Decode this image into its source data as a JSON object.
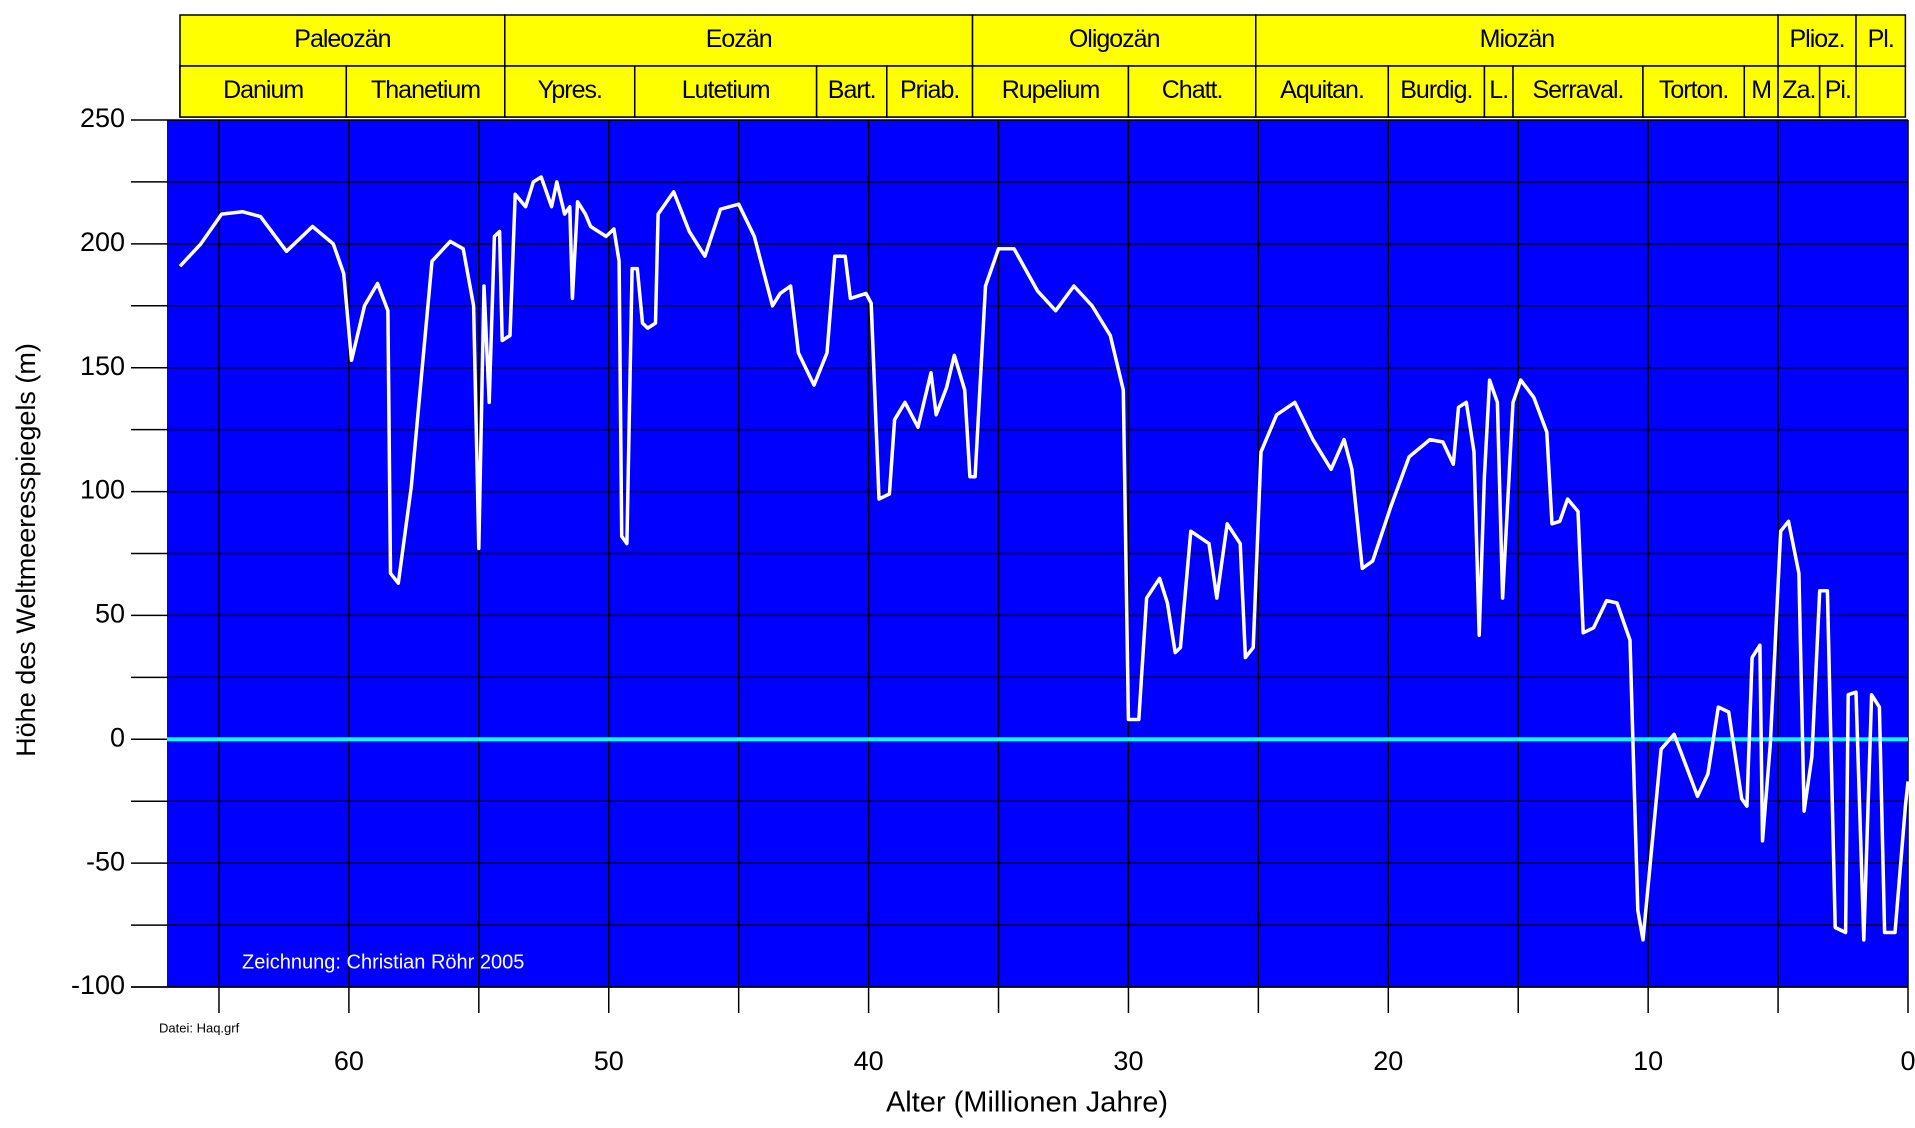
{
  "chart_data": {
    "type": "line",
    "y_label": "Höhe des Weltmeeresspiegels (m)",
    "x_label": "Alter (Millionen Jahre)",
    "annotation": "Zeichnung: Christian Röhr 2005",
    "file_note": "Datei: Haq.grf",
    "xlim": [
      67,
      0
    ],
    "xticks": [
      60,
      50,
      40,
      30,
      20,
      10,
      0
    ],
    "xminor": [
      65,
      55,
      45,
      35,
      25,
      15,
      5
    ],
    "ylim": [
      -100,
      250
    ],
    "yticks": [
      250,
      200,
      150,
      100,
      50,
      0,
      -50,
      -100
    ],
    "yminor": [
      225,
      175,
      125,
      75,
      25,
      -25,
      -75
    ],
    "grid": true,
    "background": "#0000ff",
    "reference_line": {
      "value": 0,
      "color": "#00ffff"
    },
    "epochs": [
      {
        "name": "Paleozän",
        "start": 66.5,
        "end": 54
      },
      {
        "name": "Eozän",
        "start": 54,
        "end": 36
      },
      {
        "name": "Oligozän",
        "start": 36,
        "end": 25.1
      },
      {
        "name": "Miozän",
        "start": 25.1,
        "end": 5
      },
      {
        "name": "Plioz.",
        "start": 5,
        "end": 2
      },
      {
        "name": "Pl.",
        "start": 2,
        "end": 0.1
      }
    ],
    "stages": [
      {
        "name": "Danium",
        "start": 66.5,
        "end": 60.1
      },
      {
        "name": "Thanetium",
        "start": 60.1,
        "end": 54
      },
      {
        "name": "Ypres.",
        "start": 54,
        "end": 49
      },
      {
        "name": "Lutetium",
        "start": 49,
        "end": 42
      },
      {
        "name": "Bart.",
        "start": 42,
        "end": 39.3
      },
      {
        "name": "Priab.",
        "start": 39.3,
        "end": 36
      },
      {
        "name": "Rupelium",
        "start": 36,
        "end": 30
      },
      {
        "name": "Chatt.",
        "start": 30,
        "end": 25.1
      },
      {
        "name": "Aquitan.",
        "start": 25.1,
        "end": 20
      },
      {
        "name": "Burdig.",
        "start": 20,
        "end": 16.3
      },
      {
        "name": "L.",
        "start": 16.3,
        "end": 15.2
      },
      {
        "name": "Serraval.",
        "start": 15.2,
        "end": 10.2
      },
      {
        "name": "Torton.",
        "start": 10.2,
        "end": 6.3
      },
      {
        "name": "M",
        "start": 6.3,
        "end": 5
      },
      {
        "name": "Za.",
        "start": 5,
        "end": 3.4
      },
      {
        "name": "Pi.",
        "start": 3.4,
        "end": 2
      }
    ],
    "series": [
      {
        "color": "#ffffff",
        "x": [
          66.5,
          65.7,
          64.9,
          64.1,
          63.4,
          62.4,
          61.4,
          60.6,
          60.2,
          59.9,
          59.4,
          58.9,
          58.5,
          58.4,
          58.1,
          57.6,
          56.8,
          56.1,
          55.6,
          55.2,
          55.0,
          54.8,
          54.6,
          54.4,
          54.2,
          54.1,
          53.8,
          53.6,
          53.2,
          52.9,
          52.6,
          52.2,
          52.0,
          51.7,
          51.5,
          51.4,
          51.2,
          50.9,
          50.7,
          50.4,
          50.1,
          49.8,
          49.6,
          49.5,
          49.3,
          49.1,
          48.9,
          48.7,
          48.5,
          48.2,
          48.1,
          47.5,
          46.9,
          46.3,
          45.7,
          45.0,
          44.4,
          43.7,
          43.4,
          43.0,
          42.7,
          42.1,
          41.6,
          41.3,
          40.9,
          40.7,
          40.1,
          39.9,
          39.6,
          39.2,
          39.0,
          38.6,
          38.1,
          37.6,
          37.4,
          37.0,
          36.7,
          36.3,
          36.1,
          35.9,
          35.5,
          35.0,
          34.4,
          33.5,
          32.8,
          32.1,
          31.4,
          30.7,
          30.2,
          30.0,
          29.6,
          29.3,
          28.8,
          28.5,
          28.2,
          28.0,
          27.6,
          26.9,
          26.6,
          26.2,
          25.7,
          25.5,
          25.2,
          24.9,
          24.3,
          23.6,
          22.9,
          22.2,
          21.7,
          21.4,
          21.0,
          20.6,
          19.9,
          19.2,
          18.4,
          17.9,
          17.5,
          17.3,
          17.0,
          16.7,
          16.5,
          16.3,
          16.1,
          15.8,
          15.6,
          15.2,
          14.9,
          14.4,
          13.9,
          13.7,
          13.4,
          13.1,
          12.7,
          12.5,
          12.1,
          11.6,
          11.2,
          10.7,
          10.4,
          10.2,
          9.5,
          9.0,
          8.6,
          8.1,
          7.7,
          7.3,
          6.9,
          6.4,
          6.2,
          6.0,
          5.7,
          5.6,
          5.3,
          4.9,
          4.6,
          4.2,
          4.0,
          3.7,
          3.4,
          3.1,
          2.8,
          2.4,
          2.3,
          2.0,
          1.7,
          1.4,
          1.1,
          0.9,
          0.5,
          0.1,
          0
        ],
        "values": [
          191,
          200,
          212,
          213,
          211,
          197,
          207,
          200,
          188,
          153,
          175,
          184,
          173,
          67,
          63,
          102,
          193,
          201,
          198,
          175,
          77,
          183,
          136,
          203,
          205,
          161,
          163,
          220,
          215,
          225,
          227,
          215,
          225,
          212,
          215,
          178,
          217,
          212,
          207,
          205,
          203,
          206,
          193,
          82,
          79,
          190,
          190,
          168,
          166,
          168,
          212,
          221,
          205,
          195,
          214,
          216,
          203,
          175,
          180,
          183,
          156,
          143,
          156,
          195,
          195,
          178,
          180,
          176,
          97,
          99,
          129,
          136,
          126,
          148,
          131,
          142,
          155,
          141,
          106,
          106,
          183,
          198,
          198,
          181,
          173,
          183,
          175,
          163,
          141,
          8,
          8,
          57,
          65,
          55,
          35,
          37,
          84,
          79,
          57,
          87,
          79,
          33,
          37,
          116,
          131,
          136,
          121,
          109,
          121,
          109,
          69,
          72,
          94,
          114,
          121,
          120,
          111,
          134,
          136,
          116,
          42,
          106,
          145,
          136,
          57,
          136,
          145,
          138,
          124,
          87,
          88,
          97,
          92,
          43,
          45,
          56,
          55,
          40,
          -69,
          -81,
          -4,
          2,
          -9,
          -23,
          -14,
          13,
          11,
          -24,
          -27,
          33,
          38,
          -41,
          -2,
          84,
          88,
          67,
          -29,
          -7,
          60,
          60,
          -76,
          -78,
          18,
          19,
          -81,
          18,
          13,
          -78,
          -78,
          -27,
          -17
        ]
      }
    ]
  }
}
